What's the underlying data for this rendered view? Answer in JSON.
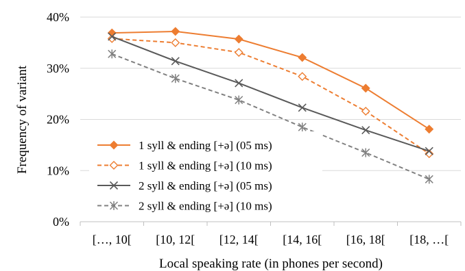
{
  "chart_data": {
    "type": "line",
    "title": "",
    "xlabel": "Local speaking rate (in phones per second)",
    "ylabel": "Frequency of variant",
    "categories": [
      "[…, 10[",
      "[10, 12[",
      "[12, 14[",
      "[14, 16[",
      "[16, 18[",
      "[18, …["
    ],
    "ylim": [
      0,
      40
    ],
    "yticks": [
      0,
      10,
      20,
      30,
      40
    ],
    "ytick_labels": [
      "0%",
      "10%",
      "20%",
      "30%",
      "40%"
    ],
    "grid": true,
    "legend_position": "bottom-left",
    "series": [
      {
        "name": "1 syll & ending [+ə]  (05 ms)",
        "values": [
          36.9,
          37.2,
          35.7,
          32.1,
          26.1,
          18.1
        ],
        "color": "#ED7D31",
        "line_style": "solid",
        "marker": "filled-diamond"
      },
      {
        "name": "1 syll & ending [+ə]  (10 ms)",
        "values": [
          35.8,
          35.0,
          33.1,
          28.4,
          21.6,
          13.3
        ],
        "color": "#ED7D31",
        "line_style": "dashed",
        "marker": "open-diamond"
      },
      {
        "name": "2 syll & ending [+ə]  (05 ms)",
        "values": [
          36.2,
          31.4,
          27.1,
          22.3,
          17.9,
          13.8
        ],
        "color": "#595959",
        "line_style": "solid",
        "marker": "x"
      },
      {
        "name": "2 syll & ending [+ə] (10 ms)",
        "values": [
          32.8,
          28.0,
          23.8,
          18.5,
          13.5,
          8.3
        ],
        "color": "#808080",
        "line_style": "dashed",
        "marker": "asterisk"
      }
    ]
  }
}
